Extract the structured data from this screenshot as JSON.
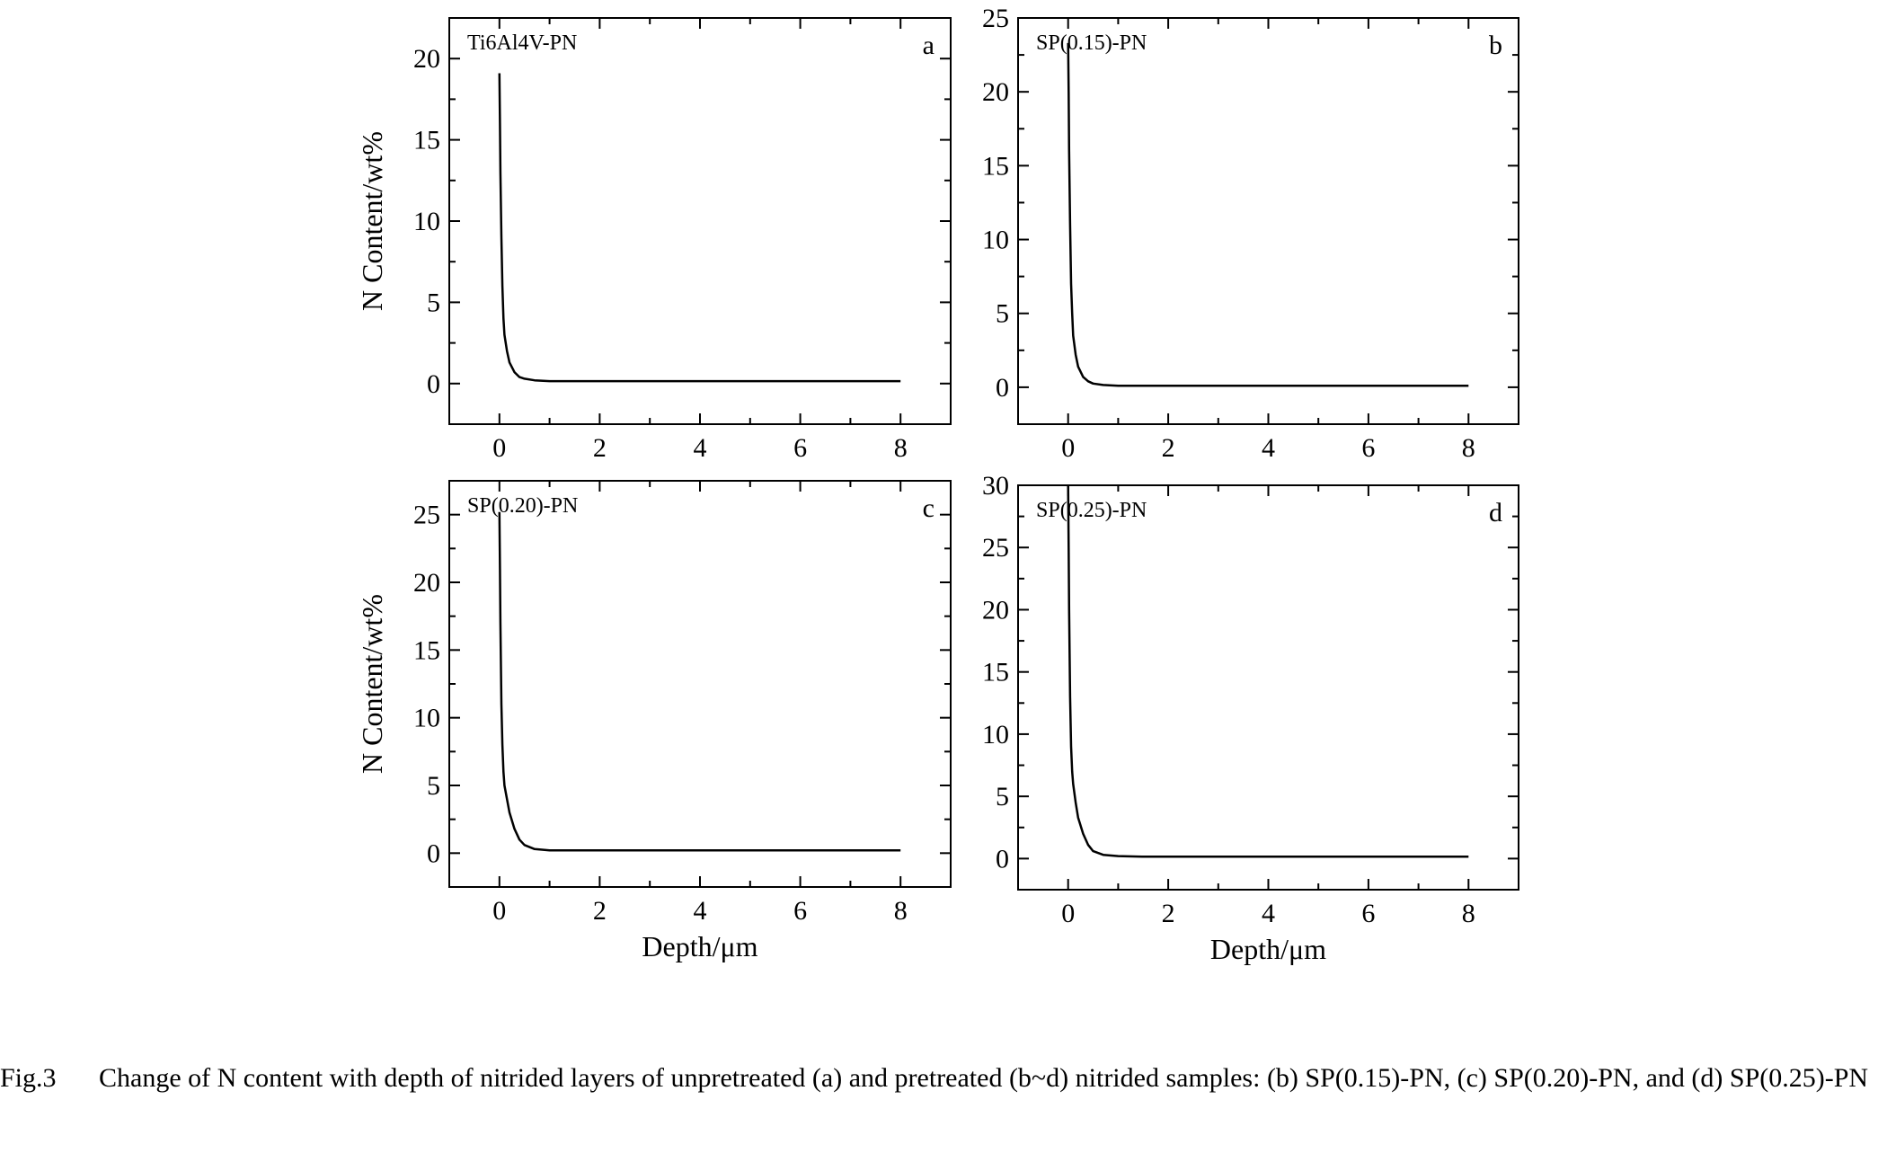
{
  "chart_data": [
    {
      "type": "line",
      "panel_letter": "a",
      "sample_label": "Ti6Al4V-PN",
      "xlabel": "",
      "ylabel": "N Content/wt%",
      "xlim": [
        -1,
        9
      ],
      "ylim": [
        -2.5,
        22.5
      ],
      "x_ticks": [
        0,
        2,
        4,
        6,
        8
      ],
      "y_ticks": [
        0,
        5,
        10,
        15,
        20
      ],
      "series": [
        {
          "x": [
            0,
            0.01,
            0.02,
            0.04,
            0.06,
            0.08,
            0.1,
            0.15,
            0.2,
            0.3,
            0.4,
            0.5,
            0.7,
            1.0,
            1.5,
            2,
            3,
            4,
            5,
            6,
            7,
            8
          ],
          "values": [
            19.1,
            16.0,
            13.0,
            9.0,
            6.0,
            4.0,
            3.0,
            2.0,
            1.3,
            0.7,
            0.4,
            0.3,
            0.2,
            0.15,
            0.15,
            0.15,
            0.15,
            0.15,
            0.15,
            0.15,
            0.15,
            0.15
          ]
        }
      ]
    },
    {
      "type": "line",
      "panel_letter": "b",
      "sample_label": "SP(0.15)-PN",
      "xlabel": "",
      "ylabel": "",
      "xlim": [
        -1,
        9
      ],
      "ylim": [
        -2.5,
        25
      ],
      "x_ticks": [
        0,
        2,
        4,
        6,
        8
      ],
      "y_ticks": [
        0,
        5,
        10,
        15,
        20,
        25
      ],
      "series": [
        {
          "x": [
            0,
            0.01,
            0.02,
            0.04,
            0.06,
            0.08,
            0.1,
            0.15,
            0.2,
            0.3,
            0.4,
            0.5,
            0.7,
            1.0,
            1.5,
            2,
            3,
            4,
            5,
            6,
            7,
            8
          ],
          "values": [
            23.3,
            20.0,
            16.0,
            11.0,
            7.0,
            5.0,
            3.5,
            2.2,
            1.4,
            0.7,
            0.4,
            0.25,
            0.15,
            0.1,
            0.1,
            0.1,
            0.1,
            0.1,
            0.1,
            0.1,
            0.1,
            0.1
          ]
        }
      ]
    },
    {
      "type": "line",
      "panel_letter": "c",
      "sample_label": "SP(0.20)-PN",
      "xlabel": "Depth/μm",
      "ylabel": "N Content/wt%",
      "xlim": [
        -1,
        9
      ],
      "ylim": [
        -2.5,
        27.5
      ],
      "x_ticks": [
        0,
        2,
        4,
        6,
        8
      ],
      "y_ticks": [
        0,
        5,
        10,
        15,
        20,
        25
      ],
      "series": [
        {
          "x": [
            0,
            0.01,
            0.02,
            0.04,
            0.06,
            0.08,
            0.1,
            0.15,
            0.2,
            0.3,
            0.4,
            0.5,
            0.7,
            1.0,
            1.5,
            2,
            3,
            4,
            5,
            6,
            7,
            8
          ],
          "values": [
            25.2,
            21.0,
            17.0,
            11.0,
            8.0,
            6.0,
            5.0,
            4.0,
            3.0,
            1.8,
            1.0,
            0.6,
            0.3,
            0.2,
            0.2,
            0.2,
            0.2,
            0.2,
            0.2,
            0.2,
            0.2,
            0.2
          ]
        }
      ]
    },
    {
      "type": "line",
      "panel_letter": "d",
      "sample_label": "SP(0.25)-PN",
      "xlabel": "Depth/μm",
      "ylabel": "",
      "xlim": [
        -1,
        9
      ],
      "ylim": [
        -2.5,
        30
      ],
      "x_ticks": [
        0,
        2,
        4,
        6,
        8
      ],
      "y_ticks": [
        0,
        5,
        10,
        15,
        20,
        25,
        30
      ],
      "series": [
        {
          "x": [
            0,
            0.01,
            0.02,
            0.04,
            0.06,
            0.08,
            0.1,
            0.15,
            0.2,
            0.3,
            0.4,
            0.5,
            0.7,
            1.0,
            1.5,
            2,
            3,
            4,
            5,
            6,
            7,
            8
          ],
          "values": [
            30.0,
            25.0,
            20.0,
            13.0,
            9.0,
            7.0,
            6.0,
            4.5,
            3.3,
            2.0,
            1.1,
            0.6,
            0.3,
            0.2,
            0.15,
            0.15,
            0.15,
            0.15,
            0.15,
            0.15,
            0.15,
            0.15
          ]
        }
      ]
    }
  ],
  "caption": {
    "label": "Fig.3",
    "text": "Change of N content with depth of nitrided layers of unpretreated (a) and pretreated (b~d) nitrided samples: (b) SP(0.15)-PN, (c) SP(0.20)-PN, and (d) SP(0.25)-PN"
  }
}
